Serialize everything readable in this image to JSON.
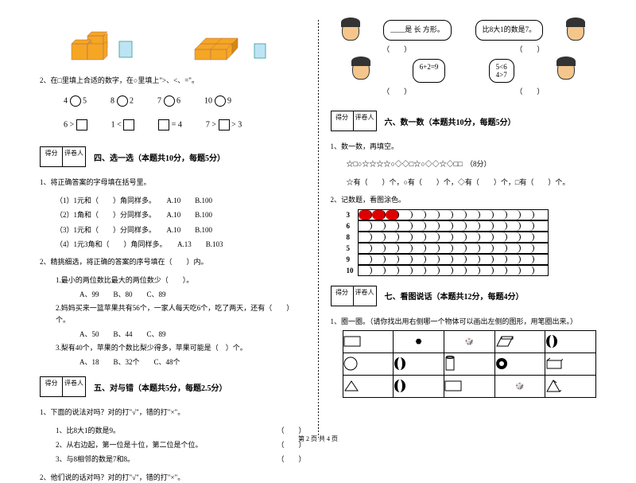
{
  "footer": "第 2 页  共 4 页",
  "score_labels": {
    "score": "得分",
    "grader": "评卷人"
  },
  "left": {
    "q2_intro": "2、在□里填上合适的数字，在○里填上\">、<、=\"。",
    "fill1": [
      "4 ○ 5",
      "8 ○ 2",
      "7 ○ 6",
      "10 ○ 9"
    ],
    "fill2": [
      "6 > □",
      "1 < □",
      "□ = 4",
      "7 > □ > 3"
    ],
    "sec4_title": "四、选一选（本题共10分，每题5分）",
    "s4q1": "1、将正确答案的字母填在括号里。",
    "s4q1_items": [
      {
        "t": "（1）1元和（　　）角同样多。",
        "a": "A.10",
        "b": "B.100"
      },
      {
        "t": "（2）1角和（　　）分同样多。",
        "a": "A.10",
        "b": "B.100"
      },
      {
        "t": "（3）1元和（　　）分同样多。",
        "a": "A.10",
        "b": "B.100"
      },
      {
        "t": "（4）1元3角和（　　）角同样多。",
        "a": "A.13",
        "b": "B.103"
      }
    ],
    "s4q2": "2、精挑细选，将正确的答案的序号填在（　　）内。",
    "s4q2_1": "1.最小的两位数比最大的两位数少（　　）。",
    "s4q2_1o": "A、99　　B、80　　C、89",
    "s4q2_2": "2.妈妈买来一篮苹果共有56个，一家人每天吃6个，吃了两天，还有（　　）个。",
    "s4q2_2o": "A、50　　B、44　　C、89",
    "s4q2_3": "3.梨有40个，苹果的个数比梨少得多，苹果可能是（　）个。",
    "s4q2_3o": "A、18　　B、32个　　C、48个",
    "sec5_title": "五、对与错（本题共5分，每题2.5分）",
    "s5q1": "1、下面的说法对吗？对的打\"√\"，错的打\"×\"。",
    "s5q1_items": [
      "1、比8大1的数是9。",
      "2、从右边起，第一位是十位，第二位是个位。",
      "3、与8相邻的数是7和8。"
    ],
    "s5q2": "2、他们说的话对吗？对的打\"√\"，错的打\"×\"。"
  },
  "right": {
    "bubbles": [
      "____是 长 方形。",
      "比8大1的数是7。",
      "6+2=9",
      "5<6\n4>7"
    ],
    "sec6_title": "六、数一数（本题共10分，每题5分）",
    "s6q1": "1、数一数，再填空。",
    "s6q1_shapes": "☆□○☆☆☆☆○◇◇□☆○◇◇☆◇□□　（8分）",
    "s6q1_ans": "☆有（　　）个，○有（　　）个，◇有（　　）个，□有（　　）个。",
    "s6q2": "2、记数题，看图涂色。",
    "count_rows": [
      {
        "n": "3",
        "f": 3
      },
      {
        "n": "6",
        "f": 0
      },
      {
        "n": "8",
        "f": 0
      },
      {
        "n": "5",
        "f": 0
      },
      {
        "n": "9",
        "f": 0
      },
      {
        "n": "10",
        "f": 0
      }
    ],
    "count_cols": 14,
    "sec7_title": "七、看图说话（本题共12分，每题4分）",
    "s7q1": "1、圈一圈。（请你找出用右侧哪一个物体可以画出左侧的图形，用笔圈出来。）"
  },
  "colors": {
    "cube": "#f5a623",
    "cube_dark": "#d68810",
    "red": "#d00000",
    "face": "#f4c68c"
  }
}
